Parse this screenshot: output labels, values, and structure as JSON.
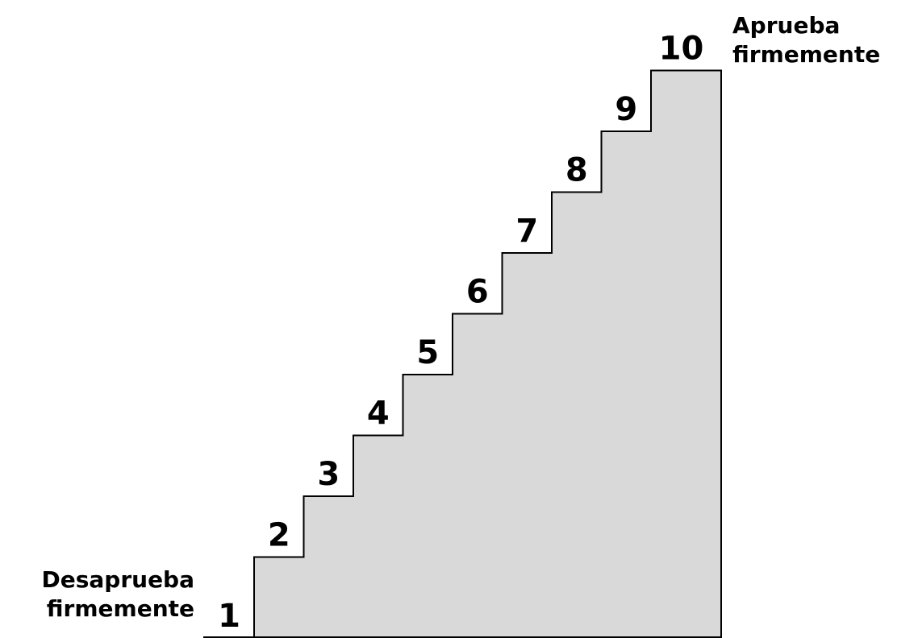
{
  "colors": {
    "fill": "#d9d9d9",
    "stroke": "#000000",
    "text": "#000000"
  },
  "scale": {
    "steps": [
      "1",
      "2",
      "3",
      "4",
      "5",
      "6",
      "7",
      "8",
      "9",
      "10"
    ],
    "low_label": {
      "line1": "Desaprueba",
      "line2": "firmemente"
    },
    "high_label": {
      "line1": "Aprueba",
      "line2": "firmemente"
    }
  }
}
